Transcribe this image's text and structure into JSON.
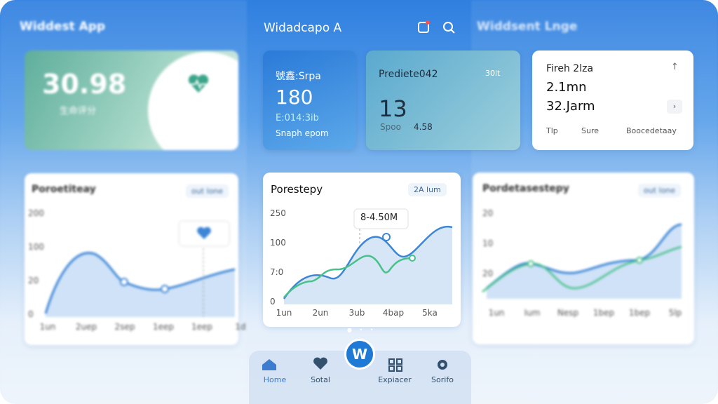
{
  "left": {
    "app_title": "Widdest App",
    "score": {
      "value": "30.98",
      "label": "生命评分"
    },
    "chart": {
      "title": "Poroetiteay",
      "badge": "out lone",
      "y_labels": [
        "200",
        "100",
        "20",
        "0"
      ],
      "x_labels": [
        "1un",
        "2uep",
        "2sep",
        "1eep",
        "1eep",
        "1d"
      ]
    }
  },
  "center": {
    "app_title": "Widadcapo A",
    "cards": [
      {
        "title": "號鑫:Srpa",
        "value": "180",
        "line1": "E:014:3ib",
        "line2": "Snaph epom"
      },
      {
        "title": "Prediete042",
        "tag": "30lt",
        "value": "13",
        "line1": "Spoo",
        "line2": "4.58"
      },
      {
        "title": "Fireh 2lza",
        "line1": "2.1mn",
        "line2": "32.Jarm",
        "footer": [
          "Tlp",
          "Sure",
          "Boocedetaay"
        ]
      }
    ],
    "chart": {
      "title": "Porestepy",
      "badge": "2A lum",
      "tooltip": "8-4.50M",
      "y_labels": [
        "250",
        "100",
        "7:0",
        "0"
      ],
      "x_labels": [
        "1un",
        "2un",
        "3ub",
        "4bap",
        "5ka"
      ]
    },
    "logo": "W",
    "nav": [
      "Home",
      "Sotal",
      "Expiacer",
      "Sorifo"
    ]
  },
  "right": {
    "app_title": "Widdsent Lnge",
    "chart": {
      "title": "Pordetasestepy",
      "badge": "out lone",
      "y_labels": [
        "20",
        "10",
        "20"
      ],
      "x_labels": [
        "1un",
        "Ium",
        "Nesp",
        "1bep",
        "1bep",
        "5lp"
      ]
    }
  }
}
